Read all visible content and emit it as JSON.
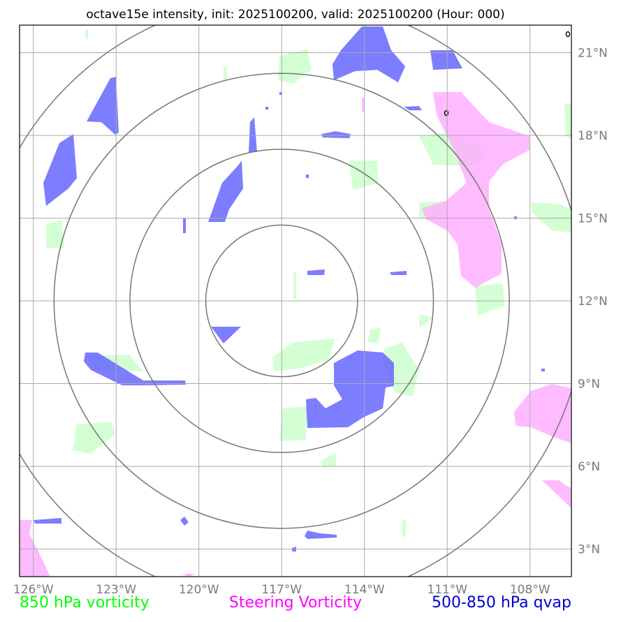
{
  "title": "octave15e intensity, init: 2025100200, valid: 2025100200 (Hour: 000)",
  "map": {
    "lon_range": [
      -126.5,
      -106.5
    ],
    "lat_range": [
      2.0,
      22.0
    ],
    "center": {
      "lon": -117.0,
      "lat": 12.0
    },
    "x_ticks": [
      {
        "lon": -126,
        "label": "126°W"
      },
      {
        "lon": -123,
        "label": "123°W"
      },
      {
        "lon": -120,
        "label": "120°W"
      },
      {
        "lon": -117,
        "label": "117°W"
      },
      {
        "lon": -114,
        "label": "114°W"
      },
      {
        "lon": -111,
        "label": "111°W"
      },
      {
        "lon": -108,
        "label": "108°W"
      }
    ],
    "y_ticks": [
      {
        "lat": 21,
        "label": "21°N"
      },
      {
        "lat": 18,
        "label": "18°N"
      },
      {
        "lat": 15,
        "label": "15°N"
      },
      {
        "lat": 12,
        "label": "12°N"
      },
      {
        "lat": 9,
        "label": "9°N"
      },
      {
        "lat": 6,
        "label": "6°N"
      },
      {
        "lat": 3,
        "label": "3°N"
      }
    ],
    "range_ring_radii_deg": [
      2.75,
      5.5,
      8.25,
      11.0
    ]
  },
  "legend": [
    {
      "label": "850 hPa vorticity",
      "color": "#00ff00"
    },
    {
      "label": "Steering Vorticity",
      "color": "#ff00ff"
    },
    {
      "label": "500-850 hPa qvap",
      "color": "#0000cc"
    }
  ],
  "colors": {
    "vort850_fill": "#ccffcc",
    "steering_fill": "#ffaaff",
    "qvap_fill": "#6666ff",
    "grid": "#aaaaaa",
    "rings": "#777777"
  }
}
